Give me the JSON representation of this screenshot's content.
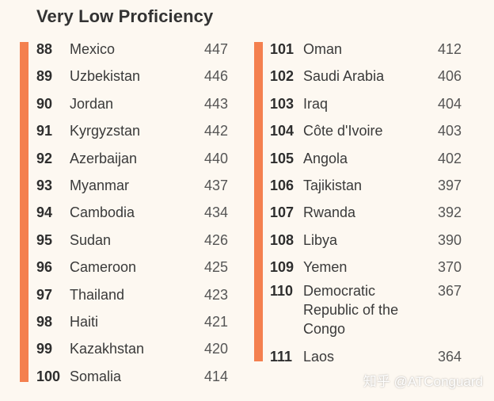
{
  "title": "Very Low Proficiency",
  "colors": {
    "accent_bar": "#f4804f",
    "background": "#fdf8f1"
  },
  "left": [
    {
      "rank": "88",
      "country": "Mexico",
      "score": "447"
    },
    {
      "rank": "89",
      "country": "Uzbekistan",
      "score": "446"
    },
    {
      "rank": "90",
      "country": "Jordan",
      "score": "443"
    },
    {
      "rank": "91",
      "country": "Kyrgyzstan",
      "score": "442"
    },
    {
      "rank": "92",
      "country": "Azerbaijan",
      "score": "440"
    },
    {
      "rank": "93",
      "country": "Myanmar",
      "score": "437"
    },
    {
      "rank": "94",
      "country": "Cambodia",
      "score": "434"
    },
    {
      "rank": "95",
      "country": "Sudan",
      "score": "426"
    },
    {
      "rank": "96",
      "country": "Cameroon",
      "score": "425"
    },
    {
      "rank": "97",
      "country": "Thailand",
      "score": "423"
    },
    {
      "rank": "98",
      "country": "Haiti",
      "score": "421"
    },
    {
      "rank": "99",
      "country": "Kazakhstan",
      "score": "420"
    },
    {
      "rank": "100",
      "country": "Somalia",
      "score": "414"
    }
  ],
  "right": [
    {
      "rank": "101",
      "country": "Oman",
      "score": "412"
    },
    {
      "rank": "102",
      "country": "Saudi Arabia",
      "score": "406"
    },
    {
      "rank": "103",
      "country": "Iraq",
      "score": "404"
    },
    {
      "rank": "104",
      "country": "Côte d'Ivoire",
      "score": "403"
    },
    {
      "rank": "105",
      "country": "Angola",
      "score": "402"
    },
    {
      "rank": "106",
      "country": "Tajikistan",
      "score": "397"
    },
    {
      "rank": "107",
      "country": "Rwanda",
      "score": "392"
    },
    {
      "rank": "108",
      "country": "Libya",
      "score": "390"
    },
    {
      "rank": "109",
      "country": "Yemen",
      "score": "370"
    },
    {
      "rank": "110",
      "country": "Democratic Republic of the Congo",
      "score": "367"
    },
    {
      "rank": "111",
      "country": "Laos",
      "score": "364"
    }
  ],
  "watermark": "知乎 @ATConguard"
}
